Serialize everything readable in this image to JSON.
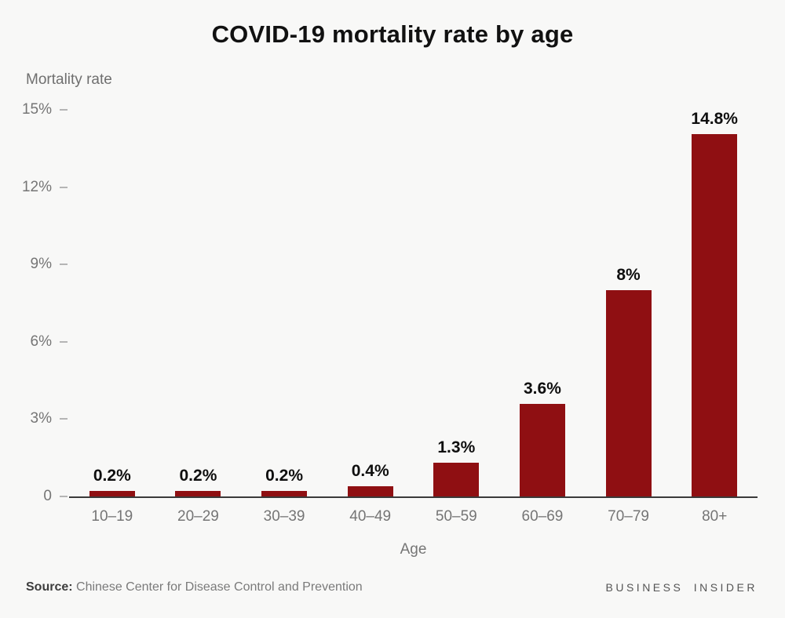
{
  "title": "COVID-19 mortality rate by age",
  "chart_data": {
    "type": "bar",
    "title": "COVID-19 mortality rate by age",
    "ylabel": "Mortality rate",
    "xlabel": "Age",
    "categories": [
      "10–19",
      "20–29",
      "30–39",
      "40–49",
      "50–59",
      "60–69",
      "70–79",
      "80+"
    ],
    "values": [
      0.2,
      0.2,
      0.2,
      0.4,
      1.3,
      3.6,
      8,
      14.8
    ],
    "value_labels": [
      "0.2%",
      "0.2%",
      "0.2%",
      "0.4%",
      "1.3%",
      "3.6%",
      "8%",
      "14.8%"
    ],
    "ylim": [
      0,
      15
    ],
    "yticks": [
      {
        "value": 0,
        "label": "0"
      },
      {
        "value": 3,
        "label": "3%"
      },
      {
        "value": 6,
        "label": "6%"
      },
      {
        "value": 9,
        "label": "9%"
      },
      {
        "value": 12,
        "label": "12%"
      },
      {
        "value": 15,
        "label": "15%"
      }
    ],
    "bar_color": "#8f0f12",
    "grid": false,
    "legend": false
  },
  "footer": {
    "source_label": "Source:",
    "source_text": " Chinese Center for Disease Control and Prevention",
    "brand": "BUSINESS INSIDER"
  }
}
